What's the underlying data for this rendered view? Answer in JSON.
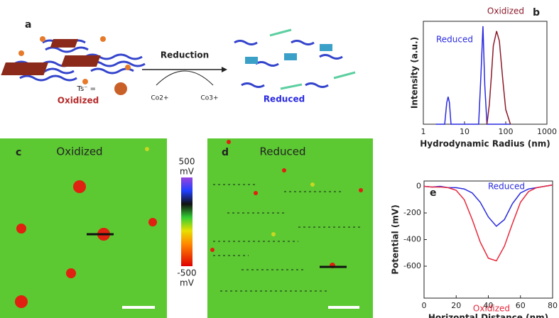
{
  "schematic": {
    "label": "a",
    "arrow_label": "Reduction",
    "reactant": "Co2+",
    "product": "Co3+",
    "ion_label": "Ts⁻ =",
    "left_state": "Oxidized",
    "right_state": "Reduced"
  },
  "images": {
    "c": {
      "label": "c",
      "title": "Oxidized"
    },
    "d": {
      "label": "d",
      "title": "Reduced"
    },
    "colorbar": {
      "top": "500",
      "top_unit": "mV",
      "bottom": "-500",
      "bottom_unit": "mV"
    }
  },
  "chart_data": [
    {
      "type": "line",
      "label": "b",
      "xlabel": "Hydrodynamic Radius (nm)",
      "ylabel": "Intensity (a.u.)",
      "xscale": "log",
      "xlim": [
        1,
        1000
      ],
      "xticks": [
        1,
        10,
        100,
        1000
      ],
      "ylim": [
        0,
        1.05
      ],
      "x": [
        2,
        3.3,
        3.7,
        4.0,
        4.3,
        4.7,
        22,
        25,
        28,
        31,
        35,
        40,
        45,
        50,
        60,
        70,
        85,
        100,
        130
      ],
      "series": [
        {
          "name": "Reduced",
          "color": "#2a2ae0",
          "values": [
            0,
            0,
            0.22,
            0.28,
            0.22,
            0,
            0,
            0.5,
            1.0,
            0.4,
            0,
            0,
            0,
            0,
            0,
            0,
            0,
            0,
            0
          ]
        },
        {
          "name": "Oxidized",
          "color": "#8b1a2a",
          "values": [
            null,
            null,
            null,
            null,
            null,
            null,
            null,
            null,
            null,
            null,
            0,
            0.2,
            0.5,
            0.8,
            0.95,
            0.85,
            0.45,
            0.15,
            0
          ]
        }
      ]
    },
    {
      "type": "line",
      "label": "e",
      "xlabel": "Horizontal Distance (nm)",
      "ylabel": "Potential (mV)",
      "xlim": [
        0,
        80
      ],
      "xticks": [
        0,
        20,
        40,
        60,
        80
      ],
      "ylim": [
        -840,
        40
      ],
      "yticks": [
        0,
        -200,
        -400,
        -600
      ],
      "x": [
        0,
        5,
        10,
        15,
        20,
        25,
        30,
        35,
        40,
        45,
        50,
        55,
        60,
        65,
        70,
        75,
        80
      ],
      "series": [
        {
          "name": "Reduced",
          "color": "#2a2ae0",
          "values": [
            0,
            -5,
            0,
            -10,
            -10,
            -20,
            -50,
            -120,
            -230,
            -300,
            -250,
            -130,
            -50,
            -20,
            -10,
            0,
            10
          ]
        },
        {
          "name": "Oxidized",
          "color": "#e8283c",
          "values": [
            0,
            -5,
            -5,
            -10,
            -30,
            -100,
            -250,
            -420,
            -540,
            -560,
            -450,
            -280,
            -120,
            -40,
            -10,
            0,
            10
          ]
        }
      ]
    }
  ]
}
